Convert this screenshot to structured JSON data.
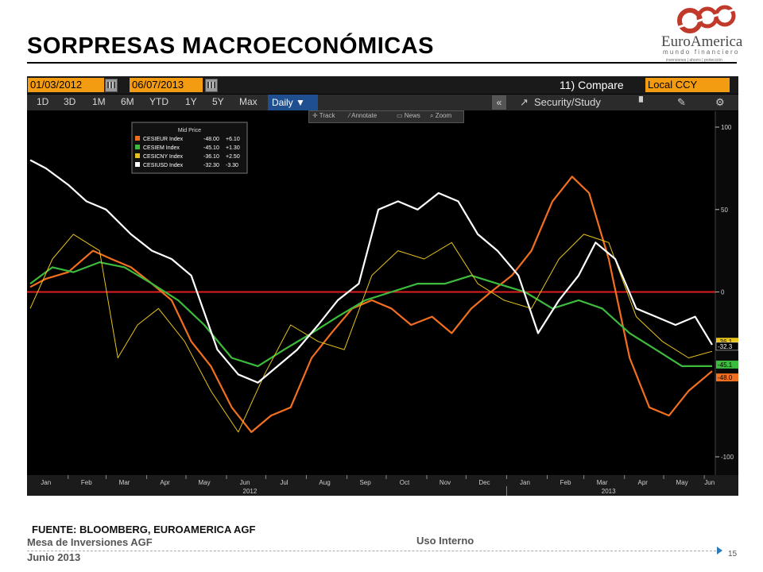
{
  "slide": {
    "title": "SORPRESAS MACROECONÓMICAS",
    "source": "FUENTE: BLOOMBERG, EUROAMERICA AGF",
    "footer_left_1": "Mesa de Inversiones AGF",
    "footer_left_2": "Junio 2013",
    "footer_mid": "Uso Interno",
    "page": "15"
  },
  "logo": {
    "name": "EuroAmerica",
    "tagline": "mundo financiero",
    "subline": "inversiones | ahorro | protección",
    "color": "#c0392b"
  },
  "toolbar": {
    "start_date": "01/03/2012",
    "dash": "-",
    "end_date": "06/07/2013",
    "compare_label": "11) Compare",
    "currency": "Local CCY",
    "periods": [
      "1D",
      "3D",
      "1M",
      "6M",
      "YTD",
      "1Y",
      "5Y",
      "Max"
    ],
    "frequency": "Daily ▼",
    "collapse": "«",
    "security_study": "Security/Study",
    "subtools": [
      "Track",
      "Annotate",
      "News",
      "Zoom"
    ]
  },
  "chart_data": {
    "type": "line",
    "legend_title": "Mid Price",
    "legend_position": "top-left",
    "x_range": [
      "2012-01-03",
      "2013-06-07"
    ],
    "ylim": [
      -105,
      105
    ],
    "y_ticks": [
      100,
      50,
      0,
      -100
    ],
    "month_labels": [
      "Jan",
      "Feb",
      "Mar",
      "Apr",
      "May",
      "Jun",
      "Jul",
      "Aug",
      "Sep",
      "Oct",
      "Nov",
      "Dec",
      "Jan",
      "Feb",
      "Mar",
      "Apr",
      "May",
      "Jun"
    ],
    "year_labels": [
      "2012",
      "2013"
    ],
    "zero_line_color": "#e02020",
    "series": [
      {
        "name": "CESIEUR Index",
        "last": "-48.00",
        "change": "+6.10",
        "tag": "-48.0",
        "color": "#f26f1f",
        "x": [
          "2012-01-03",
          "2012-01-15",
          "2012-02-01",
          "2012-02-20",
          "2012-03-05",
          "2012-03-20",
          "2012-04-05",
          "2012-04-20",
          "2012-05-05",
          "2012-05-20",
          "2012-06-05",
          "2012-06-20",
          "2012-07-05",
          "2012-07-20",
          "2012-08-05",
          "2012-08-20",
          "2012-09-05",
          "2012-09-20",
          "2012-10-05",
          "2012-10-20",
          "2012-11-05",
          "2012-11-20",
          "2012-12-05",
          "2012-12-20",
          "2013-01-05",
          "2013-01-20",
          "2013-02-05",
          "2013-02-20",
          "2013-03-05",
          "2013-03-20",
          "2013-04-05",
          "2013-04-20",
          "2013-05-05",
          "2013-05-20",
          "2013-06-07"
        ],
        "y": [
          3,
          8,
          12,
          25,
          20,
          15,
          5,
          -5,
          -30,
          -45,
          -70,
          -85,
          -75,
          -70,
          -40,
          -25,
          -10,
          -5,
          -10,
          -20,
          -15,
          -25,
          -10,
          0,
          10,
          25,
          55,
          70,
          60,
          20,
          -40,
          -70,
          -75,
          -60,
          -48
        ]
      },
      {
        "name": "CESIEM Index",
        "last": "-45.10",
        "change": "+1.30",
        "tag": "-45.1",
        "color": "#3dbb3d",
        "x": [
          "2012-01-03",
          "2012-01-20",
          "2012-02-05",
          "2012-02-25",
          "2012-03-15",
          "2012-04-05",
          "2012-04-25",
          "2012-05-15",
          "2012-06-05",
          "2012-06-25",
          "2012-07-15",
          "2012-08-05",
          "2012-08-25",
          "2012-09-15",
          "2012-10-05",
          "2012-10-25",
          "2012-11-15",
          "2012-12-05",
          "2012-12-25",
          "2013-01-15",
          "2013-02-05",
          "2013-02-25",
          "2013-03-15",
          "2013-04-05",
          "2013-04-25",
          "2013-05-15",
          "2013-06-07"
        ],
        "y": [
          5,
          15,
          12,
          18,
          15,
          5,
          -5,
          -20,
          -40,
          -45,
          -35,
          -25,
          -15,
          -5,
          0,
          5,
          5,
          10,
          5,
          0,
          -10,
          -5,
          -10,
          -25,
          -35,
          -45,
          -45
        ]
      },
      {
        "name": "CESICNY Index",
        "last": "-36.10",
        "change": "+2.50",
        "tag": "-36.1",
        "color": "#e8c21c",
        "x": [
          "2012-01-03",
          "2012-01-20",
          "2012-02-05",
          "2012-02-25",
          "2012-03-10",
          "2012-03-25",
          "2012-04-10",
          "2012-04-30",
          "2012-05-20",
          "2012-06-10",
          "2012-06-30",
          "2012-07-20",
          "2012-08-10",
          "2012-08-30",
          "2012-09-20",
          "2012-10-10",
          "2012-10-30",
          "2012-11-20",
          "2012-12-10",
          "2012-12-30",
          "2013-01-20",
          "2013-02-10",
          "2013-03-01",
          "2013-03-20",
          "2013-04-10",
          "2013-04-30",
          "2013-05-20",
          "2013-06-07"
        ],
        "y": [
          -10,
          20,
          35,
          25,
          -40,
          -20,
          -10,
          -30,
          -60,
          -85,
          -50,
          -20,
          -30,
          -35,
          10,
          25,
          20,
          30,
          5,
          -5,
          -10,
          20,
          35,
          30,
          -15,
          -30,
          -40,
          -36
        ]
      },
      {
        "name": "CESIUSD Index",
        "last": "-32.30",
        "change": "-3.30",
        "tag": "-32.3",
        "color": "#ffffff",
        "x": [
          "2012-01-03",
          "2012-01-15",
          "2012-02-01",
          "2012-02-15",
          "2012-03-01",
          "2012-03-20",
          "2012-04-05",
          "2012-04-20",
          "2012-05-05",
          "2012-05-25",
          "2012-06-10",
          "2012-06-25",
          "2012-07-10",
          "2012-07-25",
          "2012-08-10",
          "2012-08-25",
          "2012-09-10",
          "2012-09-25",
          "2012-10-10",
          "2012-10-25",
          "2012-11-10",
          "2012-11-25",
          "2012-12-10",
          "2012-12-25",
          "2013-01-10",
          "2013-01-25",
          "2013-02-10",
          "2013-02-25",
          "2013-03-10",
          "2013-03-25",
          "2013-04-10",
          "2013-04-25",
          "2013-05-10",
          "2013-05-25",
          "2013-06-07"
        ],
        "y": [
          80,
          75,
          65,
          55,
          50,
          35,
          25,
          20,
          10,
          -35,
          -50,
          -55,
          -45,
          -35,
          -20,
          -5,
          5,
          50,
          55,
          50,
          60,
          55,
          35,
          25,
          10,
          -25,
          -5,
          10,
          30,
          20,
          -10,
          -15,
          -20,
          -15,
          -32
        ]
      }
    ]
  }
}
